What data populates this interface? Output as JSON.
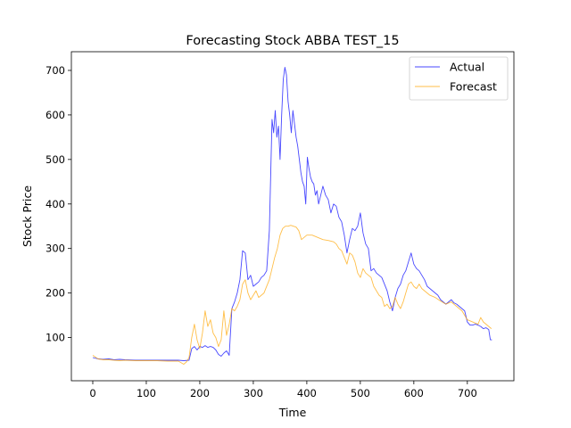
{
  "chart_data": {
    "type": "line",
    "title": "Forecasting Stock ABBA TEST_15",
    "xlabel": "Time",
    "ylabel": "Stock Price",
    "xlim": [
      -40,
      787
    ],
    "ylim": [
      3,
      742
    ],
    "xticks": [
      0,
      100,
      200,
      300,
      400,
      500,
      600,
      700
    ],
    "yticks": [
      100,
      200,
      300,
      400,
      500,
      600,
      700
    ],
    "grid": false,
    "legend_position": "top-right",
    "series": [
      {
        "name": "Actual",
        "color": "#0000ff",
        "points": [
          [
            0,
            55
          ],
          [
            10,
            52
          ],
          [
            20,
            51
          ],
          [
            30,
            52
          ],
          [
            40,
            50
          ],
          [
            50,
            51
          ],
          [
            60,
            50
          ],
          [
            80,
            49
          ],
          [
            100,
            49
          ],
          [
            120,
            49
          ],
          [
            140,
            49
          ],
          [
            160,
            49
          ],
          [
            170,
            48
          ],
          [
            180,
            49
          ],
          [
            185,
            75
          ],
          [
            190,
            80
          ],
          [
            195,
            72
          ],
          [
            200,
            80
          ],
          [
            205,
            78
          ],
          [
            210,
            82
          ],
          [
            215,
            78
          ],
          [
            220,
            80
          ],
          [
            225,
            78
          ],
          [
            230,
            72
          ],
          [
            235,
            62
          ],
          [
            240,
            58
          ],
          [
            245,
            65
          ],
          [
            250,
            70
          ],
          [
            255,
            60
          ],
          [
            260,
            165
          ],
          [
            265,
            180
          ],
          [
            270,
            200
          ],
          [
            275,
            230
          ],
          [
            280,
            295
          ],
          [
            285,
            290
          ],
          [
            290,
            230
          ],
          [
            295,
            240
          ],
          [
            300,
            215
          ],
          [
            305,
            220
          ],
          [
            310,
            225
          ],
          [
            315,
            235
          ],
          [
            320,
            240
          ],
          [
            325,
            250
          ],
          [
            330,
            340
          ],
          [
            335,
            590
          ],
          [
            338,
            560
          ],
          [
            341,
            610
          ],
          [
            344,
            550
          ],
          [
            347,
            575
          ],
          [
            350,
            500
          ],
          [
            353,
            600
          ],
          [
            356,
            680
          ],
          [
            359,
            707
          ],
          [
            362,
            690
          ],
          [
            365,
            630
          ],
          [
            368,
            600
          ],
          [
            371,
            560
          ],
          [
            374,
            610
          ],
          [
            377,
            580
          ],
          [
            380,
            550
          ],
          [
            383,
            530
          ],
          [
            386,
            500
          ],
          [
            389,
            470
          ],
          [
            392,
            450
          ],
          [
            395,
            440
          ],
          [
            398,
            400
          ],
          [
            401,
            505
          ],
          [
            404,
            480
          ],
          [
            407,
            460
          ],
          [
            410,
            450
          ],
          [
            413,
            445
          ],
          [
            416,
            420
          ],
          [
            419,
            430
          ],
          [
            422,
            400
          ],
          [
            425,
            415
          ],
          [
            430,
            440
          ],
          [
            435,
            420
          ],
          [
            440,
            410
          ],
          [
            445,
            380
          ],
          [
            450,
            400
          ],
          [
            455,
            395
          ],
          [
            460,
            370
          ],
          [
            465,
            360
          ],
          [
            470,
            330
          ],
          [
            475,
            290
          ],
          [
            480,
            320
          ],
          [
            485,
            345
          ],
          [
            490,
            340
          ],
          [
            495,
            350
          ],
          [
            500,
            380
          ],
          [
            505,
            335
          ],
          [
            510,
            310
          ],
          [
            515,
            300
          ],
          [
            520,
            250
          ],
          [
            525,
            255
          ],
          [
            530,
            245
          ],
          [
            535,
            240
          ],
          [
            540,
            235
          ],
          [
            545,
            220
          ],
          [
            550,
            205
          ],
          [
            555,
            180
          ],
          [
            560,
            160
          ],
          [
            565,
            190
          ],
          [
            570,
            210
          ],
          [
            575,
            220
          ],
          [
            580,
            240
          ],
          [
            585,
            250
          ],
          [
            590,
            270
          ],
          [
            595,
            290
          ],
          [
            600,
            265
          ],
          [
            605,
            255
          ],
          [
            610,
            250
          ],
          [
            615,
            240
          ],
          [
            620,
            230
          ],
          [
            625,
            215
          ],
          [
            630,
            210
          ],
          [
            635,
            205
          ],
          [
            640,
            200
          ],
          [
            645,
            195
          ],
          [
            650,
            185
          ],
          [
            655,
            180
          ],
          [
            660,
            175
          ],
          [
            665,
            180
          ],
          [
            670,
            185
          ],
          [
            675,
            178
          ],
          [
            680,
            175
          ],
          [
            685,
            170
          ],
          [
            690,
            165
          ],
          [
            695,
            160
          ],
          [
            700,
            135
          ],
          [
            705,
            128
          ],
          [
            710,
            128
          ],
          [
            715,
            130
          ],
          [
            720,
            128
          ],
          [
            725,
            125
          ],
          [
            730,
            120
          ],
          [
            735,
            122
          ],
          [
            740,
            118
          ],
          [
            743,
            95
          ],
          [
            746,
            95
          ]
        ]
      },
      {
        "name": "Forecast",
        "color": "#ffa500",
        "points": [
          [
            0,
            60
          ],
          [
            10,
            52
          ],
          [
            20,
            50
          ],
          [
            30,
            50
          ],
          [
            40,
            49
          ],
          [
            50,
            48
          ],
          [
            60,
            49
          ],
          [
            80,
            48
          ],
          [
            100,
            48
          ],
          [
            120,
            48
          ],
          [
            140,
            47
          ],
          [
            160,
            47
          ],
          [
            170,
            40
          ],
          [
            175,
            45
          ],
          [
            180,
            55
          ],
          [
            185,
            100
          ],
          [
            190,
            130
          ],
          [
            195,
            95
          ],
          [
            200,
            75
          ],
          [
            205,
            110
          ],
          [
            210,
            160
          ],
          [
            215,
            125
          ],
          [
            220,
            140
          ],
          [
            225,
            110
          ],
          [
            230,
            100
          ],
          [
            235,
            80
          ],
          [
            240,
            95
          ],
          [
            245,
            160
          ],
          [
            250,
            105
          ],
          [
            255,
            130
          ],
          [
            260,
            165
          ],
          [
            265,
            160
          ],
          [
            270,
            170
          ],
          [
            275,
            185
          ],
          [
            280,
            220
          ],
          [
            285,
            230
          ],
          [
            290,
            200
          ],
          [
            295,
            185
          ],
          [
            300,
            195
          ],
          [
            305,
            205
          ],
          [
            310,
            190
          ],
          [
            315,
            195
          ],
          [
            320,
            200
          ],
          [
            325,
            215
          ],
          [
            330,
            230
          ],
          [
            335,
            255
          ],
          [
            340,
            280
          ],
          [
            345,
            300
          ],
          [
            350,
            330
          ],
          [
            355,
            345
          ],
          [
            360,
            350
          ],
          [
            365,
            350
          ],
          [
            370,
            352
          ],
          [
            375,
            350
          ],
          [
            380,
            348
          ],
          [
            385,
            340
          ],
          [
            390,
            320
          ],
          [
            395,
            325
          ],
          [
            400,
            330
          ],
          [
            410,
            330
          ],
          [
            420,
            325
          ],
          [
            430,
            320
          ],
          [
            440,
            318
          ],
          [
            450,
            315
          ],
          [
            455,
            310
          ],
          [
            460,
            300
          ],
          [
            465,
            295
          ],
          [
            470,
            280
          ],
          [
            475,
            265
          ],
          [
            480,
            290
          ],
          [
            485,
            285
          ],
          [
            490,
            270
          ],
          [
            495,
            245
          ],
          [
            500,
            235
          ],
          [
            505,
            255
          ],
          [
            510,
            245
          ],
          [
            515,
            240
          ],
          [
            520,
            235
          ],
          [
            525,
            215
          ],
          [
            530,
            205
          ],
          [
            535,
            195
          ],
          [
            540,
            190
          ],
          [
            545,
            170
          ],
          [
            550,
            175
          ],
          [
            555,
            165
          ],
          [
            560,
            170
          ],
          [
            565,
            190
          ],
          [
            570,
            175
          ],
          [
            575,
            165
          ],
          [
            580,
            180
          ],
          [
            585,
            200
          ],
          [
            590,
            220
          ],
          [
            595,
            225
          ],
          [
            600,
            215
          ],
          [
            605,
            210
          ],
          [
            610,
            220
          ],
          [
            615,
            210
          ],
          [
            620,
            205
          ],
          [
            625,
            200
          ],
          [
            630,
            195
          ],
          [
            640,
            190
          ],
          [
            650,
            182
          ],
          [
            660,
            175
          ],
          [
            670,
            180
          ],
          [
            680,
            170
          ],
          [
            690,
            160
          ],
          [
            700,
            140
          ],
          [
            710,
            135
          ],
          [
            720,
            130
          ],
          [
            725,
            145
          ],
          [
            730,
            135
          ],
          [
            735,
            130
          ],
          [
            740,
            125
          ],
          [
            745,
            120
          ]
        ]
      }
    ]
  }
}
